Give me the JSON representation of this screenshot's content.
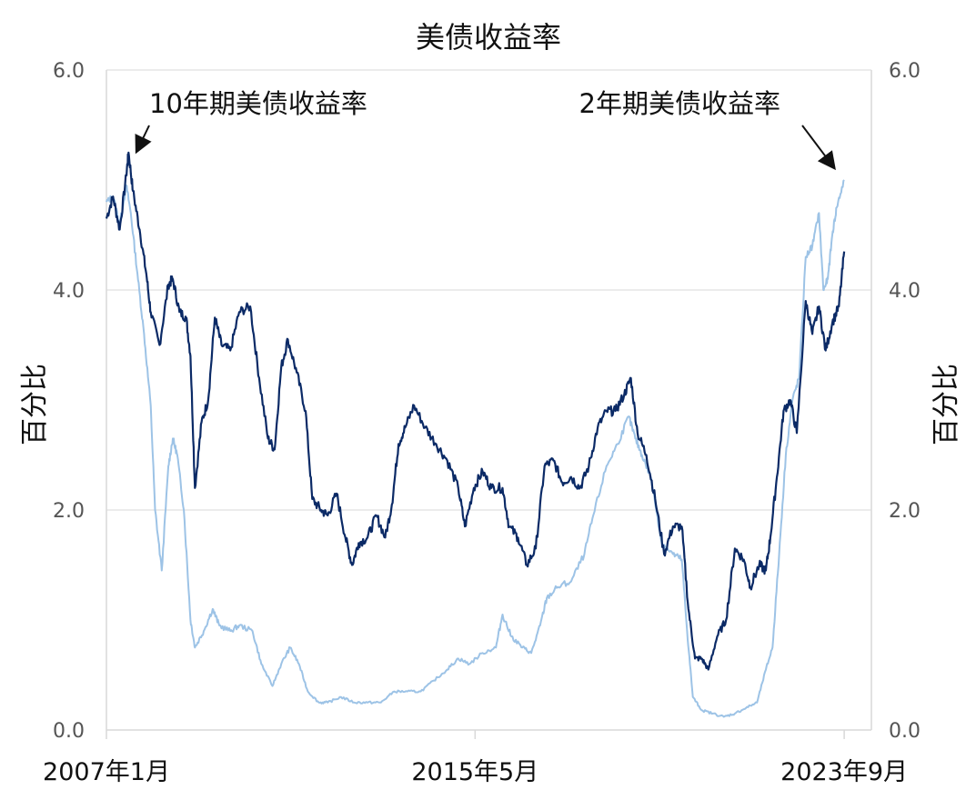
{
  "chart_data": {
    "type": "line",
    "title": "美债收益率",
    "ylabel_left": "百分比",
    "ylabel_right": "百分比",
    "ylim": [
      0,
      6
    ],
    "yticks": [
      "0.0",
      "2.0",
      "4.0",
      "6.0"
    ],
    "x_ticks": [
      {
        "label": "2007年1月",
        "year": 2007.0
      },
      {
        "label": "2015年5月",
        "year": 2015.33
      },
      {
        "label": "2023年9月",
        "year": 2023.67
      }
    ],
    "xlim_years": [
      2007.0,
      2023.75
    ],
    "grid": true,
    "colors": {
      "ten_year": "#0b2a66",
      "two_year": "#9dc3e6"
    },
    "series": [
      {
        "key": "ten_year",
        "name": "10年期美债收益率",
        "points": [
          [
            2007.0,
            4.65
          ],
          [
            2007.15,
            4.85
          ],
          [
            2007.3,
            4.55
          ],
          [
            2007.45,
            5.05
          ],
          [
            2007.5,
            5.25
          ],
          [
            2007.6,
            4.9
          ],
          [
            2007.75,
            4.55
          ],
          [
            2007.9,
            4.15
          ],
          [
            2008.0,
            3.8
          ],
          [
            2008.2,
            3.5
          ],
          [
            2008.4,
            4.05
          ],
          [
            2008.5,
            4.1
          ],
          [
            2008.65,
            3.8
          ],
          [
            2008.8,
            3.75
          ],
          [
            2008.9,
            3.4
          ],
          [
            2009.0,
            2.2
          ],
          [
            2009.15,
            2.8
          ],
          [
            2009.3,
            3.0
          ],
          [
            2009.45,
            3.75
          ],
          [
            2009.6,
            3.5
          ],
          [
            2009.8,
            3.45
          ],
          [
            2010.0,
            3.8
          ],
          [
            2010.25,
            3.85
          ],
          [
            2010.45,
            3.2
          ],
          [
            2010.65,
            2.65
          ],
          [
            2010.8,
            2.55
          ],
          [
            2010.95,
            3.3
          ],
          [
            2011.1,
            3.55
          ],
          [
            2011.3,
            3.25
          ],
          [
            2011.5,
            2.9
          ],
          [
            2011.65,
            2.1
          ],
          [
            2011.85,
            2.0
          ],
          [
            2012.0,
            1.95
          ],
          [
            2012.2,
            2.15
          ],
          [
            2012.4,
            1.75
          ],
          [
            2012.55,
            1.5
          ],
          [
            2012.7,
            1.7
          ],
          [
            2012.9,
            1.75
          ],
          [
            2013.1,
            1.95
          ],
          [
            2013.3,
            1.75
          ],
          [
            2013.45,
            2.05
          ],
          [
            2013.6,
            2.6
          ],
          [
            2013.75,
            2.75
          ],
          [
            2013.95,
            2.95
          ],
          [
            2014.2,
            2.75
          ],
          [
            2014.45,
            2.6
          ],
          [
            2014.7,
            2.45
          ],
          [
            2014.95,
            2.2
          ],
          [
            2015.1,
            1.85
          ],
          [
            2015.3,
            2.2
          ],
          [
            2015.5,
            2.35
          ],
          [
            2015.7,
            2.2
          ],
          [
            2015.95,
            2.2
          ],
          [
            2016.1,
            1.85
          ],
          [
            2016.3,
            1.75
          ],
          [
            2016.5,
            1.5
          ],
          [
            2016.7,
            1.65
          ],
          [
            2016.9,
            2.4
          ],
          [
            2017.1,
            2.45
          ],
          [
            2017.3,
            2.25
          ],
          [
            2017.5,
            2.3
          ],
          [
            2017.7,
            2.2
          ],
          [
            2017.9,
            2.4
          ],
          [
            2018.1,
            2.75
          ],
          [
            2018.3,
            2.9
          ],
          [
            2018.5,
            2.9
          ],
          [
            2018.7,
            3.05
          ],
          [
            2018.85,
            3.2
          ],
          [
            2019.0,
            2.7
          ],
          [
            2019.2,
            2.5
          ],
          [
            2019.4,
            2.1
          ],
          [
            2019.6,
            1.6
          ],
          [
            2019.8,
            1.85
          ],
          [
            2020.0,
            1.85
          ],
          [
            2020.15,
            1.1
          ],
          [
            2020.3,
            0.65
          ],
          [
            2020.45,
            0.65
          ],
          [
            2020.6,
            0.55
          ],
          [
            2020.8,
            0.85
          ],
          [
            2021.0,
            1.0
          ],
          [
            2021.2,
            1.65
          ],
          [
            2021.4,
            1.55
          ],
          [
            2021.55,
            1.3
          ],
          [
            2021.75,
            1.5
          ],
          [
            2021.9,
            1.45
          ],
          [
            2022.0,
            1.75
          ],
          [
            2022.15,
            2.3
          ],
          [
            2022.3,
            2.9
          ],
          [
            2022.45,
            3.0
          ],
          [
            2022.6,
            2.7
          ],
          [
            2022.8,
            3.9
          ],
          [
            2022.95,
            3.6
          ],
          [
            2023.1,
            3.85
          ],
          [
            2023.25,
            3.45
          ],
          [
            2023.4,
            3.7
          ],
          [
            2023.55,
            3.85
          ],
          [
            2023.67,
            4.35
          ]
        ]
      },
      {
        "key": "two_year",
        "name": "2年期美债收益率",
        "points": [
          [
            2007.0,
            4.8
          ],
          [
            2007.15,
            4.85
          ],
          [
            2007.3,
            4.6
          ],
          [
            2007.45,
            4.95
          ],
          [
            2007.55,
            4.7
          ],
          [
            2007.7,
            4.15
          ],
          [
            2007.85,
            3.6
          ],
          [
            2008.0,
            2.95
          ],
          [
            2008.1,
            2.0
          ],
          [
            2008.25,
            1.45
          ],
          [
            2008.4,
            2.4
          ],
          [
            2008.5,
            2.65
          ],
          [
            2008.6,
            2.5
          ],
          [
            2008.75,
            2.0
          ],
          [
            2008.9,
            1.0
          ],
          [
            2009.0,
            0.75
          ],
          [
            2009.2,
            0.9
          ],
          [
            2009.4,
            1.1
          ],
          [
            2009.55,
            0.95
          ],
          [
            2009.8,
            0.9
          ],
          [
            2010.0,
            0.95
          ],
          [
            2010.3,
            0.9
          ],
          [
            2010.5,
            0.6
          ],
          [
            2010.75,
            0.4
          ],
          [
            2010.95,
            0.6
          ],
          [
            2011.15,
            0.75
          ],
          [
            2011.35,
            0.6
          ],
          [
            2011.55,
            0.35
          ],
          [
            2011.8,
            0.25
          ],
          [
            2012.0,
            0.25
          ],
          [
            2012.3,
            0.3
          ],
          [
            2012.6,
            0.25
          ],
          [
            2012.9,
            0.25
          ],
          [
            2013.2,
            0.25
          ],
          [
            2013.5,
            0.35
          ],
          [
            2013.8,
            0.35
          ],
          [
            2014.1,
            0.35
          ],
          [
            2014.4,
            0.45
          ],
          [
            2014.7,
            0.55
          ],
          [
            2014.95,
            0.65
          ],
          [
            2015.2,
            0.6
          ],
          [
            2015.5,
            0.7
          ],
          [
            2015.8,
            0.75
          ],
          [
            2015.95,
            1.05
          ],
          [
            2016.15,
            0.85
          ],
          [
            2016.4,
            0.75
          ],
          [
            2016.6,
            0.7
          ],
          [
            2016.8,
            0.95
          ],
          [
            2016.95,
            1.2
          ],
          [
            2017.2,
            1.3
          ],
          [
            2017.5,
            1.35
          ],
          [
            2017.8,
            1.6
          ],
          [
            2018.0,
            1.95
          ],
          [
            2018.3,
            2.4
          ],
          [
            2018.55,
            2.6
          ],
          [
            2018.8,
            2.85
          ],
          [
            2018.95,
            2.65
          ],
          [
            2019.1,
            2.5
          ],
          [
            2019.3,
            2.3
          ],
          [
            2019.55,
            1.7
          ],
          [
            2019.8,
            1.6
          ],
          [
            2020.0,
            1.55
          ],
          [
            2020.12,
            0.9
          ],
          [
            2020.25,
            0.3
          ],
          [
            2020.45,
            0.18
          ],
          [
            2020.7,
            0.15
          ],
          [
            2020.95,
            0.12
          ],
          [
            2021.2,
            0.15
          ],
          [
            2021.45,
            0.2
          ],
          [
            2021.7,
            0.25
          ],
          [
            2021.9,
            0.55
          ],
          [
            2022.05,
            0.75
          ],
          [
            2022.2,
            1.6
          ],
          [
            2022.35,
            2.5
          ],
          [
            2022.5,
            3.0
          ],
          [
            2022.65,
            3.2
          ],
          [
            2022.8,
            4.3
          ],
          [
            2022.95,
            4.4
          ],
          [
            2023.1,
            4.7
          ],
          [
            2023.2,
            4.0
          ],
          [
            2023.3,
            4.1
          ],
          [
            2023.4,
            4.5
          ],
          [
            2023.5,
            4.75
          ],
          [
            2023.67,
            5.0
          ]
        ]
      }
    ],
    "annotations": [
      {
        "text": "10年期美债收益率",
        "series": "ten_year",
        "arrow_to": [
          2007.65,
          5.2
        ]
      },
      {
        "text": "2年期美债收益率",
        "series": "two_year",
        "arrow_to": [
          2023.35,
          5.05
        ]
      }
    ]
  }
}
